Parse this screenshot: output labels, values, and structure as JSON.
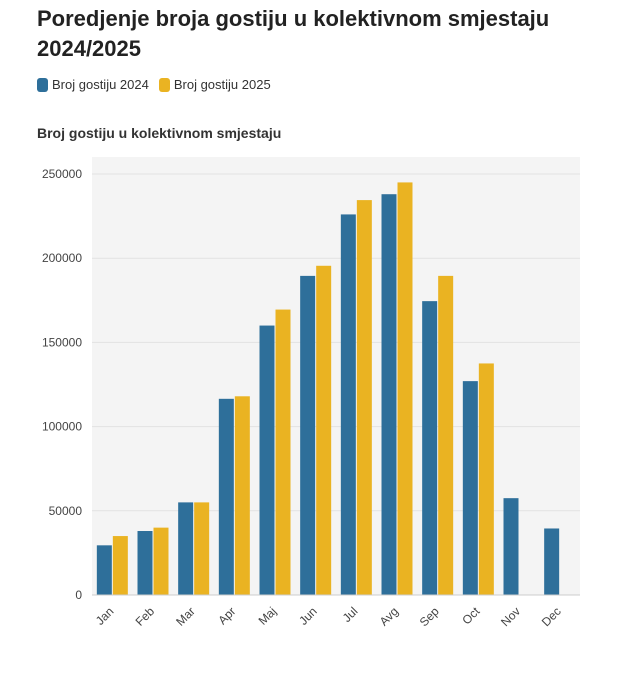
{
  "header": {
    "title": "Poredjenje broja gostiju u kolektivnom smjestaju 2024/2025"
  },
  "legend": {
    "items": [
      {
        "label": "Broj gostiju 2024",
        "color": "#2e6f9a"
      },
      {
        "label": "Broj gostiju 2025",
        "color": "#eab322"
      }
    ]
  },
  "chart_data": {
    "type": "bar",
    "title": "Broj gostiju u kolektivnom smjestaju",
    "xlabel": "",
    "ylabel": "",
    "categories": [
      "Jan",
      "Feb",
      "Mar",
      "Apr",
      "Maj",
      "Jun",
      "Jul",
      "Avg",
      "Sep",
      "Oct",
      "Nov",
      "Dec"
    ],
    "series": [
      {
        "name": "Broj gostiju 2024",
        "color": "#2e6f9a",
        "values": [
          29500,
          38000,
          55000,
          116500,
          160000,
          189500,
          226000,
          238000,
          174500,
          127000,
          57500,
          39500
        ]
      },
      {
        "name": "Broj gostiju 2025",
        "color": "#eab322",
        "values": [
          35000,
          40000,
          55000,
          118000,
          169500,
          195500,
          234500,
          245000,
          189500,
          137500,
          null,
          null
        ]
      }
    ],
    "ylim": [
      0,
      250000
    ],
    "yticks": [
      0,
      50000,
      100000,
      150000,
      200000,
      250000
    ],
    "ytick_labels": [
      "0",
      "50000",
      "100000",
      "150000",
      "200000",
      "250000"
    ],
    "grid": true,
    "legend_position": "top-left"
  }
}
